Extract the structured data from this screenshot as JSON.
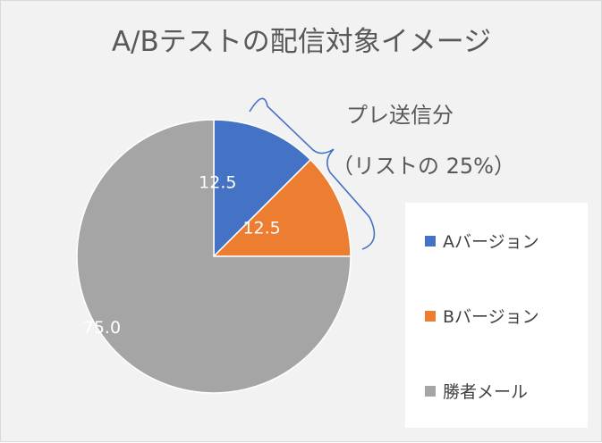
{
  "chart_data": {
    "type": "pie",
    "title": "A/Bテストの配信対象イメージ",
    "slices": [
      {
        "name": "Aバージョン",
        "value": 12.5,
        "label": "12.5",
        "color": "#4472C4"
      },
      {
        "name": "Bバージョン",
        "value": 12.5,
        "label": "12.5",
        "color": "#ED7D31"
      },
      {
        "name": "勝者メール",
        "value": 75.0,
        "label": "75.0",
        "color": "#A5A5A5"
      }
    ],
    "start_angle": "12 o'clock",
    "direction": "clockwise",
    "legend_position": "right",
    "annotation": {
      "line1": "プレ送信分",
      "line2": "（リストの 25%）",
      "bracket_color": "#4472C4"
    }
  }
}
